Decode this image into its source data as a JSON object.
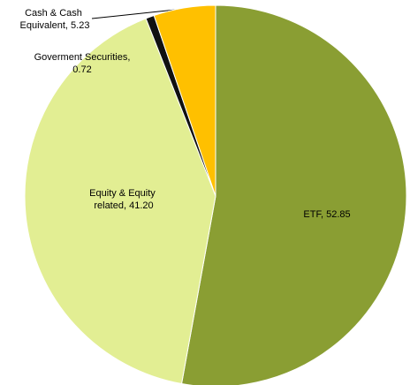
{
  "chart_data": {
    "type": "pie",
    "categories": [
      "ETF",
      "Equity & Equity related",
      "Goverment Securities",
      "Cash & Cash Equivalent"
    ],
    "values": [
      52.85,
      41.2,
      0.72,
      5.23
    ],
    "value_labels": [
      "52.85",
      "41.20",
      "0.72",
      "5.23"
    ],
    "colors": [
      "#8a9e33",
      "#e2ee93",
      "#111111",
      "#ffc000"
    ]
  }
}
